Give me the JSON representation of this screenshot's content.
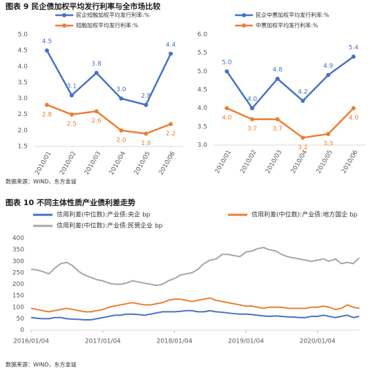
{
  "chart_data": [
    {
      "type": "line",
      "title": "图表 9   民企债加权平均发行利率与全市场比较",
      "source": "数据来源：WIND，东方金诚",
      "categories": [
        "2010/01",
        "2010/02",
        "2010/03",
        "2010/04",
        "2010/05",
        "2010/06"
      ],
      "series": [
        {
          "name": "民企短融加权平均发行利率:%",
          "color": "#4472c4",
          "values": [
            4.5,
            3.1,
            3.8,
            3.0,
            2.8,
            4.4
          ],
          "value_labels": [
            "4.5",
            "3.1",
            "3.8",
            "3.0",
            "2.8",
            "4.4"
          ]
        },
        {
          "name": "短融加权平均发行利率:%",
          "color": "#ed7d31",
          "values": [
            2.8,
            2.5,
            2.6,
            2.0,
            1.9,
            2.2
          ],
          "value_labels": [
            "2.8",
            "2.5",
            "2.6",
            "2.0",
            "1.9",
            "2.2"
          ]
        }
      ],
      "ylim": [
        1.5,
        5.0
      ],
      "yticks": [
        1.5,
        {
          "value": 2,
          "label": "2.0"
        },
        2.5,
        {
          "value": 3,
          "label": "3.0"
        },
        3.5,
        {
          "value": 4,
          "label": "4.0"
        },
        4.5,
        {
          "value": 5,
          "label": "5.0"
        }
      ]
    },
    {
      "type": "line",
      "categories": [
        "2010/01",
        "2010/02",
        "2010/03",
        "2010/04",
        "2010/05",
        "2010/06"
      ],
      "series": [
        {
          "name": "民企中票加权平均发行利率:%",
          "color": "#4472c4",
          "values": [
            5.0,
            4.0,
            4.8,
            4.2,
            4.9,
            5.4
          ],
          "value_labels": [
            "5.0",
            "4.0",
            "4.8",
            "4.2",
            "4.9",
            "5.4"
          ]
        },
        {
          "name": "中票加权平均发行利率:%",
          "color": "#ed7d31",
          "values": [
            4.0,
            3.7,
            3.7,
            3.2,
            3.3,
            4.0
          ],
          "value_labels": [
            "4.0",
            "3.7",
            "3.7",
            "3.2",
            "3.3",
            "4.0"
          ]
        }
      ],
      "ylim": [
        3.0,
        6.0
      ],
      "yticks": [
        {
          "value": 3,
          "label": "3.0"
        },
        3.5,
        {
          "value": 4,
          "label": "4.0"
        },
        4.5,
        {
          "value": 5,
          "label": "5.0"
        },
        5.5,
        {
          "value": 6,
          "label": "6.0"
        }
      ]
    },
    {
      "type": "timeseries",
      "title": "图表 10   不同主体性质产业债利差走势",
      "source": "数据来源：WIND，东方金诚",
      "x": [
        "2016/01/04",
        "2016/02/04",
        "2016/03/04",
        "2016/04/04",
        "2016/05/04",
        "2016/06/04",
        "2016/07/04",
        "2016/08/04",
        "2016/09/04",
        "2016/10/04",
        "2016/11/04",
        "2016/12/04",
        "2017/01/04",
        "2017/02/04",
        "2017/03/04",
        "2017/04/04",
        "2017/05/04",
        "2017/06/04",
        "2017/07/04",
        "2017/08/04",
        "2017/09/04",
        "2017/10/04",
        "2017/11/04",
        "2017/12/04",
        "2018/01/04",
        "2018/02/04",
        "2018/03/04",
        "2018/04/04",
        "2018/05/04",
        "2018/06/04",
        "2018/07/04",
        "2018/08/04",
        "2018/09/04",
        "2018/10/04",
        "2018/11/04",
        "2018/12/04",
        "2019/01/04",
        "2019/02/04",
        "2019/03/04",
        "2019/04/04",
        "2019/05/04",
        "2019/06/04",
        "2019/07/04",
        "2019/08/04",
        "2019/09/04",
        "2019/10/04",
        "2019/11/04",
        "2019/12/04",
        "2020/01/04",
        "2020/02/04",
        "2020/03/04",
        "2020/04/04",
        "2020/05/04",
        "2020/06/04",
        "2020/07/04",
        "2020/08/04"
      ],
      "series": [
        {
          "name": "信用利差(中位数):产业债:央企 bp",
          "color": "#4472c4",
          "values": [
            55,
            52,
            50,
            50,
            55,
            55,
            50,
            48,
            47,
            45,
            45,
            50,
            55,
            60,
            65,
            65,
            70,
            70,
            68,
            65,
            70,
            75,
            80,
            80,
            80,
            82,
            85,
            85,
            80,
            80,
            85,
            80,
            78,
            75,
            72,
            70,
            70,
            68,
            65,
            62,
            60,
            62,
            60,
            58,
            57,
            55,
            55,
            60,
            60,
            65,
            60,
            55,
            60,
            65,
            55,
            60
          ]
        },
        {
          "name": "信用利差(中位数):产业债:地方国企 bp",
          "color": "#ed7d31",
          "values": [
            95,
            90,
            85,
            80,
            85,
            90,
            95,
            90,
            85,
            80,
            80,
            85,
            90,
            100,
            105,
            110,
            115,
            120,
            115,
            110,
            110,
            115,
            120,
            130,
            135,
            135,
            130,
            125,
            130,
            135,
            140,
            130,
            125,
            120,
            115,
            110,
            105,
            105,
            100,
            95,
            100,
            100,
            100,
            95,
            95,
            95,
            95,
            100,
            100,
            105,
            100,
            90,
            95,
            110,
            100,
            95
          ]
        },
        {
          "name": "信用利差(中位数):产业债:民营企业 bp",
          "color": "#a5a5a5",
          "values": [
            265,
            262,
            255,
            245,
            270,
            290,
            295,
            280,
            255,
            240,
            230,
            220,
            215,
            205,
            200,
            200,
            205,
            215,
            210,
            205,
            200,
            195,
            200,
            215,
            225,
            240,
            245,
            250,
            265,
            290,
            305,
            310,
            330,
            330,
            325,
            320,
            340,
            345,
            355,
            360,
            350,
            345,
            330,
            320,
            315,
            310,
            305,
            300,
            305,
            310,
            300,
            310,
            290,
            295,
            290,
            315
          ]
        }
      ],
      "xlim": [
        "2016/01/04",
        "2020/08/04"
      ],
      "xticks": [
        "2016/01/04",
        "2017/01/04",
        "2018/01/04",
        "2019/01/04",
        "2020/01/04"
      ],
      "ylim": [
        0,
        400
      ],
      "yticks": [
        0,
        50,
        100,
        150,
        200,
        250,
        300,
        350,
        400
      ]
    }
  ]
}
